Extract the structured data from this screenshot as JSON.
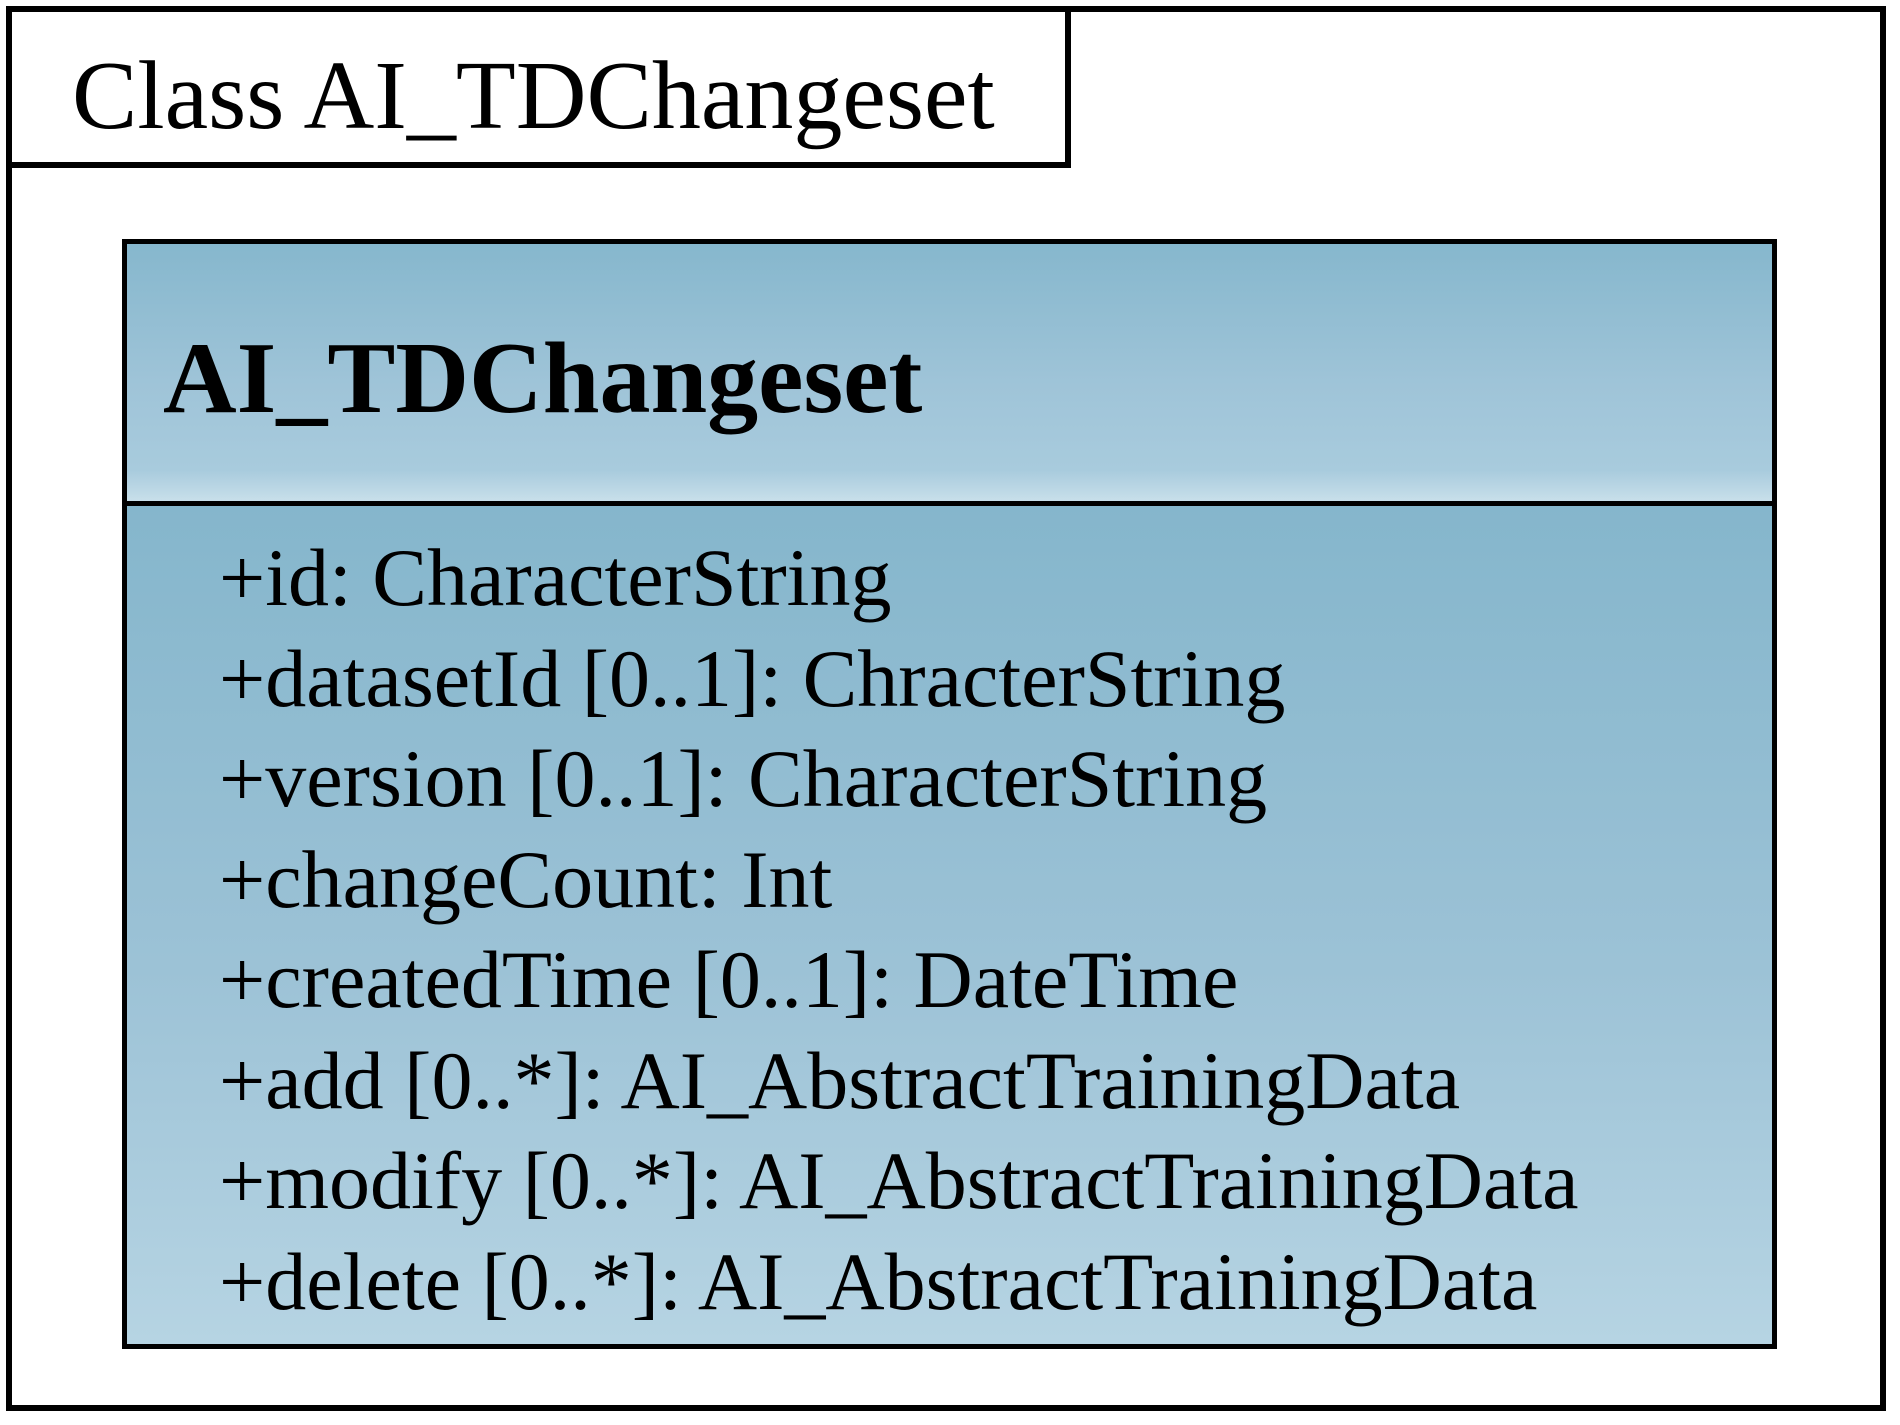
{
  "frame": {
    "title": "Class AI_TDChangeset"
  },
  "class": {
    "name": "AI_TDChangeset",
    "attributes": [
      "+id: CharacterString",
      "+datasetId [0..1]: ChracterString",
      "+version [0..1]: CharacterString",
      "+changeCount: Int",
      "+createdTime [0..1]: DateTime",
      "+add [0..*]: AI_AbstractTrainingData",
      "+modify [0..*]: AI_AbstractTrainingData",
      "+delete [0..*]: AI_AbstractTrainingData"
    ]
  },
  "colors": {
    "class_fill_top": "#86b7cd",
    "class_fill_bottom": "#b9d6e4",
    "border": "#000000"
  }
}
